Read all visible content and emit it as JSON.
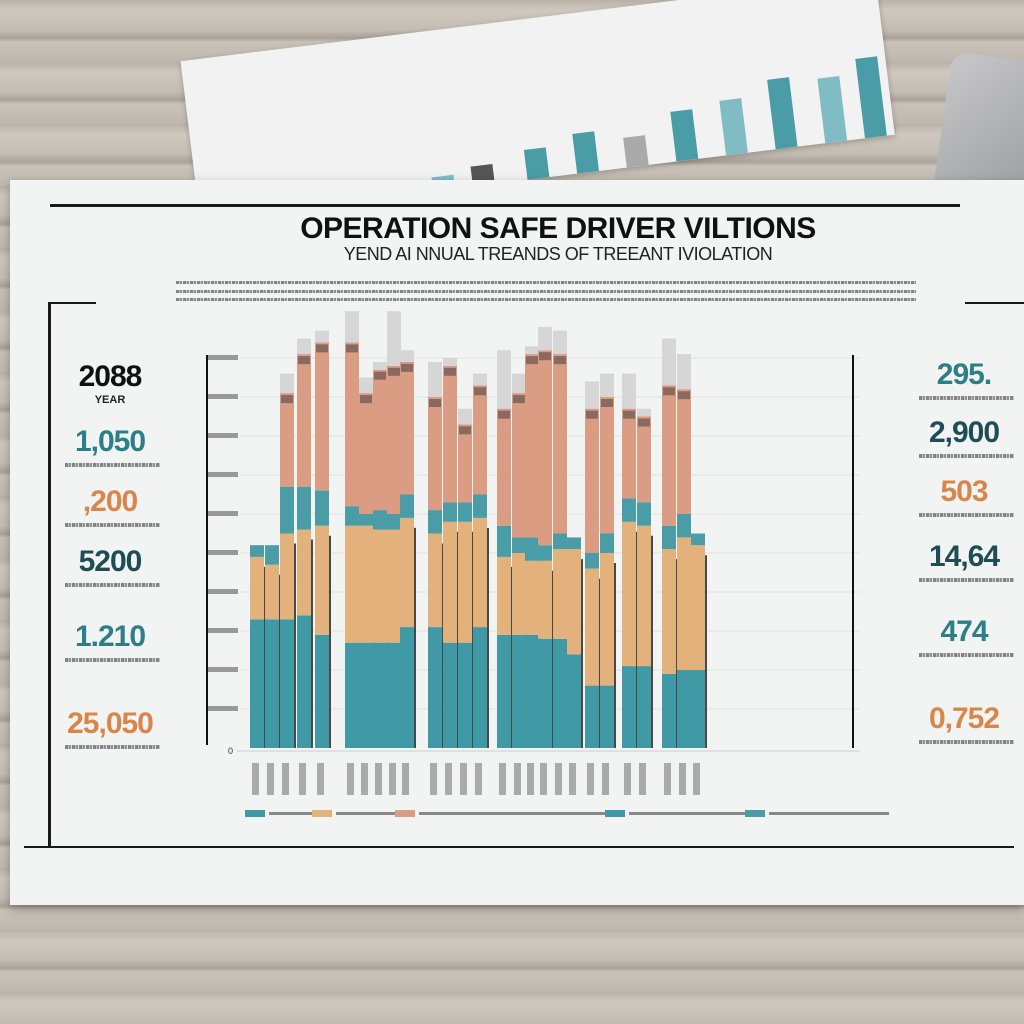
{
  "header": {
    "title": "OPERATION SAFE DRIVER VILTIONS",
    "subtitle": "YEND AI NNUAL TREANDS OF TREEANT IVIOLATION"
  },
  "left_stats": [
    {
      "value": "2088",
      "label": "YEAR",
      "color": "#111111"
    },
    {
      "value": "1,050",
      "label": "",
      "color": "#2b7f87"
    },
    {
      "value": ",200",
      "label": "",
      "color": "#d9864a"
    },
    {
      "value": "5200",
      "label": "",
      "color": "#1f4d55"
    },
    {
      "value": "1.210",
      "label": "",
      "color": "#2b7f87"
    },
    {
      "value": "25,050",
      "label": "",
      "color": "#d9864a"
    }
  ],
  "right_stats": [
    {
      "value": "295.",
      "label": "",
      "color": "#2b7f87"
    },
    {
      "value": "2,900",
      "label": "",
      "color": "#1f4d55"
    },
    {
      "value": "503",
      "label": "",
      "color": "#d9864a"
    },
    {
      "value": "14,64",
      "label": "",
      "color": "#1f4d55"
    },
    {
      "value": "474",
      "label": "",
      "color": "#2b7f87"
    },
    {
      "value": "0,752",
      "label": "",
      "color": "#d9864a"
    }
  ],
  "colors": {
    "teal": "#3f9aa5",
    "tan": "#e3b27c",
    "salmon": "#da9c82",
    "cap": "#d6d6d6",
    "band": "#4a9ca6"
  },
  "chart_data": {
    "type": "bar",
    "stacked": true,
    "title": "OPERATION SAFE DRIVER VILTIONS",
    "xlabel": "",
    "ylabel": "",
    "ylim": [
      0,
      10.8
    ],
    "y_tick_labels": [
      "0"
    ],
    "grid": true,
    "legend_placement": "bottom",
    "groups": [
      5,
      5,
      4,
      6,
      4,
      3
    ],
    "series": [
      {
        "color": "#3f9aa5",
        "values": [
          3.3,
          3.3,
          3.3,
          3.4,
          2.9,
          2.7,
          2.7,
          2.7,
          2.7,
          3.1,
          3.1,
          2.7,
          2.7,
          3.1,
          2.9,
          2.9,
          2.9,
          2.8,
          2.8,
          2.4,
          1.6,
          1.6,
          2.1,
          2.1,
          1.9,
          2.0,
          2.0
        ]
      },
      {
        "color": "#e3b27c",
        "values": [
          1.6,
          1.4,
          2.2,
          2.2,
          2.8,
          3.0,
          3.0,
          2.9,
          2.9,
          2.8,
          2.4,
          3.1,
          3.1,
          2.8,
          2.0,
          2.1,
          1.9,
          2.0,
          2.3,
          2.7,
          3.0,
          3.4,
          3.7,
          3.6,
          3.2,
          3.4,
          3.2
        ]
      },
      {
        "color": "#4a9ca6",
        "values": [
          0.3,
          0.5,
          1.2,
          1.1,
          0.9,
          0.5,
          0.3,
          0.5,
          0.4,
          0.6,
          0.6,
          0.5,
          0.5,
          0.6,
          0.8,
          0.4,
          0.6,
          0.4,
          0.4,
          0.3,
          0.4,
          0.5,
          0.6,
          0.6,
          0.6,
          0.6,
          0.3
        ]
      },
      {
        "color": "#da9c82",
        "values": [
          0,
          0,
          2.4,
          3.4,
          3.8,
          4.2,
          3.1,
          3.6,
          3.8,
          3.4,
          2.9,
          3.5,
          2.0,
          2.8,
          3.0,
          3.7,
          4.7,
          5.0,
          4.6,
          0,
          3.7,
          3.5,
          2.3,
          2.2,
          3.6,
          3.2,
          0
        ]
      },
      {
        "color": "#d6d6d6",
        "values": [
          0,
          0,
          0.5,
          0.4,
          0.3,
          0.8,
          0.4,
          0.2,
          1.4,
          0.3,
          0.9,
          0.2,
          0.4,
          0.3,
          1.5,
          0.5,
          0.2,
          0.6,
          0.6,
          0,
          0.7,
          0.6,
          0.9,
          0.2,
          1.2,
          0.9,
          0
        ]
      }
    ],
    "legend": [
      {
        "color": "#3f9aa5",
        "name": ""
      },
      {
        "color": "#e3b27c",
        "name": ""
      },
      {
        "color": "#da9c82",
        "name": ""
      },
      {
        "color": "#3f9aa5",
        "name": ""
      },
      {
        "color": "#4a9ca6",
        "name": ""
      }
    ]
  }
}
